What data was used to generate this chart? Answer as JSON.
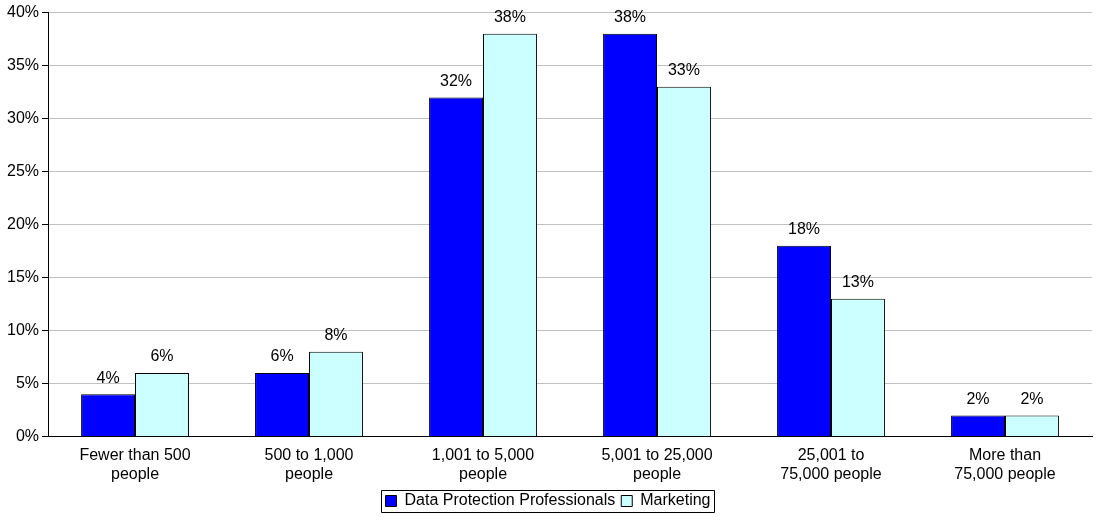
{
  "chart_data": {
    "type": "bar",
    "categories": [
      "Fewer than 500 people",
      "500 to 1,000 people",
      "1,001 to 5,000 people",
      "5,001 to 25,000 people",
      "25,001 to 75,000 people",
      "More than 75,000 people"
    ],
    "series": [
      {
        "name": "Data Protection Professionals",
        "color": "#0000ff",
        "values": [
          4,
          6,
          32,
          38,
          18,
          2
        ]
      },
      {
        "name": "Marketing",
        "color": "#ccffff",
        "values": [
          6,
          8,
          38,
          33,
          13,
          2
        ]
      }
    ],
    "ylim": [
      0,
      40
    ],
    "yticks": [
      {
        "value": 0,
        "label": "0%"
      },
      {
        "value": 5,
        "label": "5%"
      },
      {
        "value": 10,
        "label": "10%"
      },
      {
        "value": 15,
        "label": "15%"
      },
      {
        "value": 20,
        "label": "20%"
      },
      {
        "value": 25,
        "label": "25%"
      },
      {
        "value": 30,
        "label": "30%"
      },
      {
        "value": 35,
        "label": "35%"
      },
      {
        "value": 40,
        "label": "40%"
      }
    ],
    "value_labels": [
      [
        "4%",
        "6%",
        "32%",
        "38%",
        "18%",
        "2%"
      ],
      [
        "6%",
        "8%",
        "38%",
        "33%",
        "13%",
        "2%"
      ]
    ],
    "grid": "y",
    "legend": "bottom"
  }
}
